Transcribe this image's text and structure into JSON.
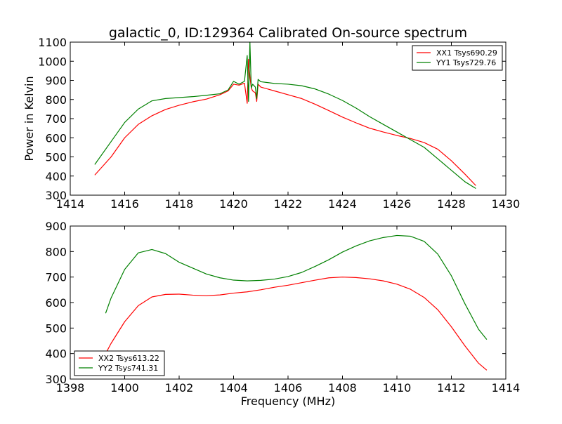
{
  "figure": {
    "title": "galactic_0, ID:129364 Calibrated On-source spectrum"
  },
  "chart_data": [
    {
      "type": "line",
      "title": "galactic_0, ID:129364 Calibrated On-source spectrum",
      "xlabel": "",
      "ylabel": "Power in Kelvin",
      "xlim": [
        1414,
        1430
      ],
      "ylim": [
        300,
        1100
      ],
      "xticks": [
        1414,
        1416,
        1418,
        1420,
        1422,
        1424,
        1426,
        1428,
        1430
      ],
      "yticks": [
        300,
        400,
        500,
        600,
        700,
        800,
        900,
        1000,
        1100
      ],
      "grid": false,
      "legend": {
        "placement": "top-right"
      },
      "series": [
        {
          "name": "XX1 Tsys690.29",
          "color": "#ff0000",
          "x": [
            1414.9,
            1415.5,
            1416.0,
            1416.5,
            1417.0,
            1417.5,
            1418.0,
            1418.5,
            1419.0,
            1419.5,
            1419.8,
            1420.0,
            1420.2,
            1420.4,
            1420.5,
            1420.55,
            1420.6,
            1420.65,
            1420.7,
            1420.8,
            1420.85,
            1420.9,
            1421.0,
            1421.5,
            1422.0,
            1422.5,
            1423.0,
            1423.5,
            1424.0,
            1424.5,
            1425.0,
            1425.5,
            1426.0,
            1426.5,
            1427.0,
            1427.5,
            1428.0,
            1428.5,
            1428.9
          ],
          "values": [
            405,
            500,
            600,
            670,
            715,
            748,
            770,
            788,
            802,
            825,
            845,
            880,
            875,
            885,
            780,
            1010,
            920,
            860,
            845,
            835,
            790,
            880,
            865,
            845,
            825,
            805,
            775,
            742,
            708,
            678,
            650,
            630,
            612,
            596,
            575,
            540,
            480,
            410,
            350
          ]
        },
        {
          "name": "YY1 Tsys729.76",
          "color": "#008000",
          "x": [
            1414.9,
            1415.5,
            1416.0,
            1416.5,
            1417.0,
            1417.5,
            1418.0,
            1418.5,
            1419.0,
            1419.5,
            1419.8,
            1420.0,
            1420.2,
            1420.4,
            1420.5,
            1420.55,
            1420.6,
            1420.65,
            1420.7,
            1420.8,
            1420.85,
            1420.9,
            1421.0,
            1421.5,
            1422.0,
            1422.5,
            1423.0,
            1423.5,
            1424.0,
            1424.5,
            1425.0,
            1425.5,
            1426.0,
            1426.5,
            1427.0,
            1427.5,
            1428.0,
            1428.5,
            1428.9
          ],
          "values": [
            460,
            580,
            680,
            750,
            793,
            805,
            810,
            815,
            822,
            830,
            850,
            895,
            880,
            895,
            1030,
            790,
            1100,
            860,
            880,
            865,
            805,
            905,
            893,
            884,
            880,
            872,
            855,
            828,
            795,
            755,
            710,
            670,
            630,
            590,
            550,
            490,
            430,
            370,
            335
          ]
        }
      ]
    },
    {
      "type": "line",
      "title": "",
      "xlabel": "Frequency (MHz)",
      "ylabel": "",
      "xlim": [
        1398,
        1414
      ],
      "ylim": [
        300,
        900
      ],
      "xticks": [
        1398,
        1400,
        1402,
        1404,
        1406,
        1408,
        1410,
        1412,
        1414
      ],
      "yticks": [
        300,
        400,
        500,
        600,
        700,
        800,
        900
      ],
      "grid": false,
      "legend": {
        "placement": "bottom-left"
      },
      "series": [
        {
          "name": "XX2 Tsys613.22",
          "color": "#ff0000",
          "x": [
            1399.3,
            1399.5,
            1400.0,
            1400.5,
            1401.0,
            1401.5,
            1402.0,
            1402.5,
            1403.0,
            1403.5,
            1404.0,
            1404.5,
            1405.0,
            1405.5,
            1406.0,
            1406.5,
            1407.0,
            1407.5,
            1408.0,
            1408.5,
            1409.0,
            1409.5,
            1410.0,
            1410.5,
            1411.0,
            1411.5,
            1412.0,
            1412.5,
            1413.0,
            1413.3
          ],
          "values": [
            400,
            440,
            525,
            588,
            622,
            632,
            633,
            629,
            627,
            630,
            637,
            642,
            650,
            660,
            668,
            678,
            688,
            697,
            700,
            698,
            693,
            685,
            672,
            652,
            620,
            572,
            505,
            430,
            362,
            335
          ]
        },
        {
          "name": "YY2 Tsys741.31",
          "color": "#008000",
          "x": [
            1399.3,
            1399.5,
            1400.0,
            1400.5,
            1401.0,
            1401.5,
            1402.0,
            1402.5,
            1403.0,
            1403.5,
            1404.0,
            1404.5,
            1405.0,
            1405.5,
            1406.0,
            1406.5,
            1407.0,
            1407.5,
            1408.0,
            1408.5,
            1409.0,
            1409.5,
            1410.0,
            1410.5,
            1411.0,
            1411.5,
            1412.0,
            1412.5,
            1413.0,
            1413.3
          ],
          "values": [
            558,
            618,
            730,
            795,
            808,
            792,
            758,
            735,
            712,
            697,
            688,
            685,
            687,
            692,
            702,
            718,
            742,
            768,
            798,
            822,
            842,
            855,
            863,
            860,
            840,
            790,
            705,
            595,
            495,
            455
          ]
        }
      ]
    }
  ]
}
